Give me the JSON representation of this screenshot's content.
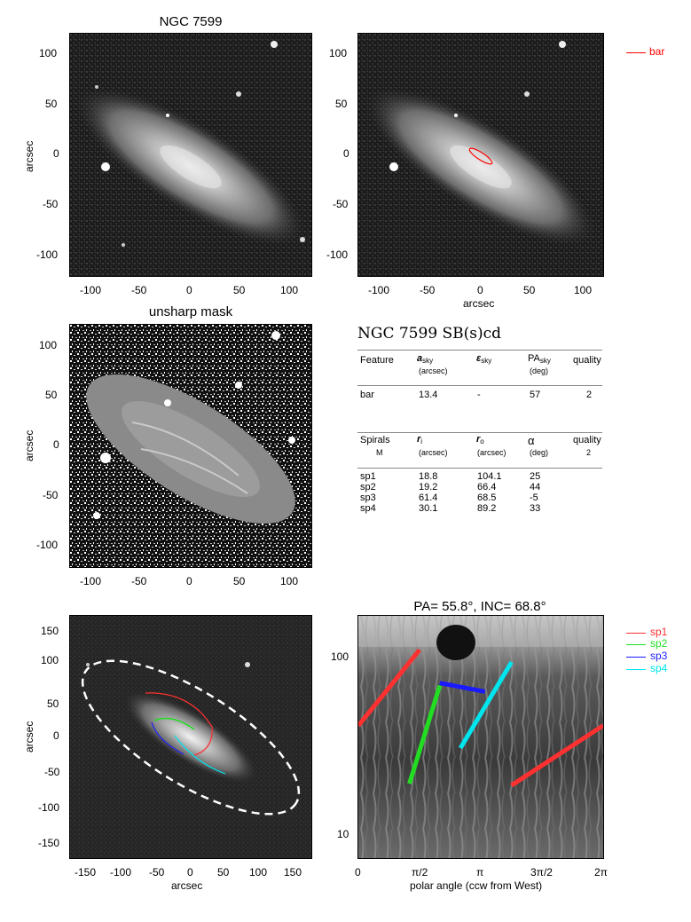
{
  "panel1": {
    "title": "NGC 7599",
    "ylabel": "arcsec",
    "xticks": [
      "-100",
      "-50",
      "0",
      "50",
      "100"
    ],
    "yticks": [
      "100",
      "50",
      "0",
      "-50",
      "-100"
    ]
  },
  "panel2": {
    "xlabel": "arcsec",
    "xticks": [
      "-100",
      "-50",
      "0",
      "50",
      "100"
    ],
    "yticks": [
      "100",
      "50",
      "0",
      "-50",
      "-100"
    ],
    "legend": [
      {
        "label": "bar",
        "color": "#ff0000"
      }
    ]
  },
  "panel3": {
    "title": "unsharp mask",
    "ylabel": "arcsec",
    "xticks": [
      "-100",
      "-50",
      "0",
      "50",
      "100"
    ],
    "yticks": [
      "100",
      "50",
      "0",
      "-50",
      "-100"
    ]
  },
  "table": {
    "heading": "NGC 7599  SB(s)cd",
    "bar_header": {
      "feature": "Feature",
      "a": "a",
      "a_sub": "sky",
      "a_unit": "(arcsec)",
      "eps": "ε",
      "eps_sub": "sky",
      "pa": "PA",
      "pa_sub": "sky",
      "pa_unit": "(deg)",
      "quality": "quality"
    },
    "bar_row": {
      "feature": "bar",
      "a": "13.4",
      "eps": "-",
      "pa": "57",
      "quality": "2"
    },
    "spiral_header": {
      "spirals": "Spirals",
      "m": "M",
      "ri": "r",
      "ri_sub": "i",
      "ri_unit": "(arcsec)",
      "ro": "r",
      "ro_sub": "o",
      "ro_unit": "(arcsec)",
      "alpha": "α",
      "alpha_unit": "(deg)",
      "quality": "quality",
      "quality_val": "2"
    },
    "spiral_rows": [
      {
        "name": "sp1",
        "ri": "18.8",
        "ro": "104.1",
        "alpha": "25"
      },
      {
        "name": "sp2",
        "ri": "19.2",
        "ro": "66.4",
        "alpha": "44"
      },
      {
        "name": "sp3",
        "ri": "61.4",
        "ro": "68.5",
        "alpha": "-5"
      },
      {
        "name": "sp4",
        "ri": "30.1",
        "ro": "89.2",
        "alpha": "33"
      }
    ]
  },
  "panel5": {
    "ylabel": "arcsec",
    "xlabel": "arcsec",
    "xticks": [
      "-150",
      "-100",
      "-50",
      "0",
      "50",
      "100",
      "150"
    ],
    "yticks": [
      "150",
      "100",
      "50",
      "0",
      "-50",
      "-100",
      "-150"
    ]
  },
  "panel6": {
    "title": "PA= 55.8°, INC= 68.8°",
    "xlabel": "polar angle (ccw from West)",
    "xticks": [
      "0",
      "π/2",
      "π",
      "3π/2",
      "2π"
    ],
    "yticks": [
      "100",
      "10"
    ],
    "legend": [
      {
        "label": "sp1",
        "color": "#ff3030"
      },
      {
        "label": "sp2",
        "color": "#22dd22"
      },
      {
        "label": "sp3",
        "color": "#1a1aff"
      },
      {
        "label": "sp4",
        "color": "#00e5ee"
      }
    ]
  },
  "chart_data": [
    {
      "type": "line",
      "title": "PA= 55.8°, INC= 68.8°",
      "xlabel": "polar angle (ccw from West)",
      "ylabel": "",
      "xlim": [
        0,
        6.2832
      ],
      "ylim": [
        7.5,
        160
      ],
      "yscale": "log",
      "series": [
        {
          "name": "sp1",
          "x": [
            0.0,
            1.57,
            3.93,
            6.28
          ],
          "y": [
            40,
            104.1,
            18.8,
            40
          ]
        },
        {
          "name": "sp2",
          "x": [
            1.31,
            2.09
          ],
          "y": [
            19.2,
            66.4
          ]
        },
        {
          "name": "sp3",
          "x": [
            2.09,
            3.25
          ],
          "y": [
            68.5,
            61.4
          ]
        },
        {
          "name": "sp4",
          "x": [
            2.62,
            3.93
          ],
          "y": [
            30.1,
            89.2
          ]
        }
      ]
    }
  ]
}
